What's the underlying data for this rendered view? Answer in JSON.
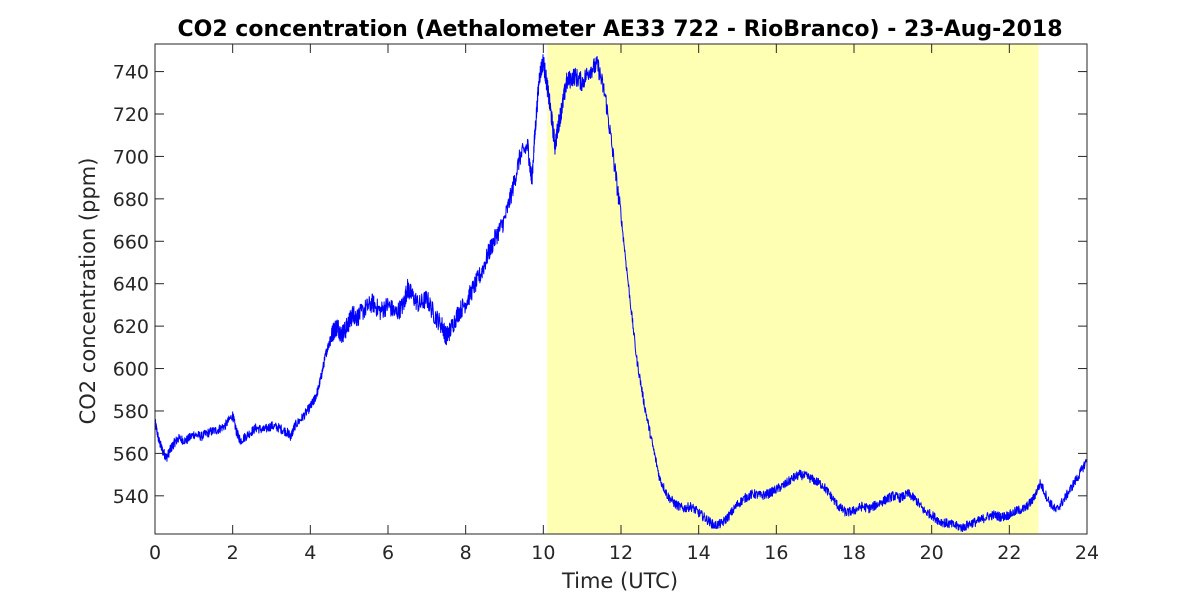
{
  "chart_data": {
    "type": "line",
    "title": "CO2 concentration (Aethalometer AE33 722 - RioBranco) - 23-Aug-2018",
    "xlabel": "Time (UTC)",
    "ylabel": "CO2 concentration (ppm)",
    "xlim": [
      0,
      24
    ],
    "ylim": [
      522,
      753
    ],
    "xticks": [
      0,
      2,
      4,
      6,
      8,
      10,
      12,
      14,
      16,
      18,
      20,
      22,
      24
    ],
    "yticks": [
      540,
      560,
      580,
      600,
      620,
      640,
      660,
      680,
      700,
      720,
      740
    ],
    "grid": false,
    "highlight_span": {
      "x": [
        10.1,
        22.75
      ],
      "color": "#FFFFB3"
    },
    "series": [
      {
        "color": "#0000FF",
        "points": [
          [
            0.0,
            575
          ],
          [
            0.1,
            566
          ],
          [
            0.2,
            561
          ],
          [
            0.3,
            558
          ],
          [
            0.4,
            562
          ],
          [
            0.5,
            565
          ],
          [
            0.6,
            567
          ],
          [
            0.8,
            566
          ],
          [
            1.0,
            569
          ],
          [
            1.2,
            568
          ],
          [
            1.4,
            570
          ],
          [
            1.6,
            571
          ],
          [
            1.8,
            573
          ],
          [
            2.0,
            578
          ],
          [
            2.1,
            570
          ],
          [
            2.2,
            566
          ],
          [
            2.4,
            569
          ],
          [
            2.6,
            572
          ],
          [
            2.8,
            571
          ],
          [
            3.0,
            573
          ],
          [
            3.2,
            572
          ],
          [
            3.4,
            570
          ],
          [
            3.5,
            568
          ],
          [
            3.6,
            573
          ],
          [
            3.8,
            577
          ],
          [
            4.0,
            582
          ],
          [
            4.1,
            585
          ],
          [
            4.2,
            590
          ],
          [
            4.3,
            598
          ],
          [
            4.4,
            607
          ],
          [
            4.5,
            613
          ],
          [
            4.6,
            618
          ],
          [
            4.7,
            620
          ],
          [
            4.8,
            616
          ],
          [
            4.9,
            618
          ],
          [
            5.0,
            622
          ],
          [
            5.1,
            626
          ],
          [
            5.2,
            624
          ],
          [
            5.4,
            628
          ],
          [
            5.6,
            631
          ],
          [
            5.8,
            627
          ],
          [
            6.0,
            630
          ],
          [
            6.2,
            626
          ],
          [
            6.4,
            630
          ],
          [
            6.5,
            638
          ],
          [
            6.6,
            635
          ],
          [
            6.8,
            630
          ],
          [
            7.0,
            633
          ],
          [
            7.2,
            625
          ],
          [
            7.4,
            620
          ],
          [
            7.5,
            615
          ],
          [
            7.6,
            618
          ],
          [
            7.8,
            626
          ],
          [
            8.0,
            631
          ],
          [
            8.2,
            638
          ],
          [
            8.4,
            645
          ],
          [
            8.6,
            655
          ],
          [
            8.8,
            663
          ],
          [
            9.0,
            670
          ],
          [
            9.2,
            684
          ],
          [
            9.4,
            700
          ],
          [
            9.6,
            705
          ],
          [
            9.7,
            688
          ],
          [
            9.8,
            715
          ],
          [
            9.9,
            738
          ],
          [
            10.0,
            745
          ],
          [
            10.1,
            733
          ],
          [
            10.2,
            720
          ],
          [
            10.3,
            705
          ],
          [
            10.4,
            716
          ],
          [
            10.5,
            725
          ],
          [
            10.6,
            735
          ],
          [
            10.8,
            738
          ],
          [
            11.0,
            735
          ],
          [
            11.2,
            741
          ],
          [
            11.4,
            743
          ],
          [
            11.6,
            728
          ],
          [
            11.8,
            700
          ],
          [
            12.0,
            672
          ],
          [
            12.2,
            638
          ],
          [
            12.4,
            605
          ],
          [
            12.6,
            583
          ],
          [
            12.8,
            565
          ],
          [
            13.0,
            548
          ],
          [
            13.2,
            540
          ],
          [
            13.4,
            536
          ],
          [
            13.6,
            534
          ],
          [
            13.8,
            535
          ],
          [
            14.0,
            532
          ],
          [
            14.2,
            529
          ],
          [
            14.4,
            526
          ],
          [
            14.6,
            527
          ],
          [
            14.8,
            531
          ],
          [
            15.0,
            536
          ],
          [
            15.2,
            539
          ],
          [
            15.4,
            541
          ],
          [
            15.6,
            540
          ],
          [
            15.8,
            541
          ],
          [
            16.0,
            543
          ],
          [
            16.2,
            545
          ],
          [
            16.4,
            548
          ],
          [
            16.6,
            550
          ],
          [
            16.8,
            549
          ],
          [
            17.0,
            547
          ],
          [
            17.2,
            545
          ],
          [
            17.4,
            540
          ],
          [
            17.6,
            535
          ],
          [
            17.8,
            532
          ],
          [
            18.0,
            533
          ],
          [
            18.2,
            535
          ],
          [
            18.4,
            534
          ],
          [
            18.6,
            536
          ],
          [
            18.8,
            538
          ],
          [
            19.0,
            540
          ],
          [
            19.2,
            539
          ],
          [
            19.4,
            541
          ],
          [
            19.6,
            538
          ],
          [
            19.8,
            533
          ],
          [
            20.0,
            531
          ],
          [
            20.2,
            528
          ],
          [
            20.4,
            527
          ],
          [
            20.6,
            526
          ],
          [
            20.8,
            525
          ],
          [
            21.0,
            527
          ],
          [
            21.2,
            528
          ],
          [
            21.4,
            530
          ],
          [
            21.6,
            531
          ],
          [
            21.8,
            530
          ],
          [
            22.0,
            531
          ],
          [
            22.2,
            533
          ],
          [
            22.4,
            534
          ],
          [
            22.6,
            538
          ],
          [
            22.8,
            546
          ],
          [
            23.0,
            538
          ],
          [
            23.2,
            533
          ],
          [
            23.4,
            538
          ],
          [
            23.6,
            544
          ],
          [
            23.8,
            550
          ],
          [
            24.0,
            557
          ]
        ]
      }
    ]
  }
}
